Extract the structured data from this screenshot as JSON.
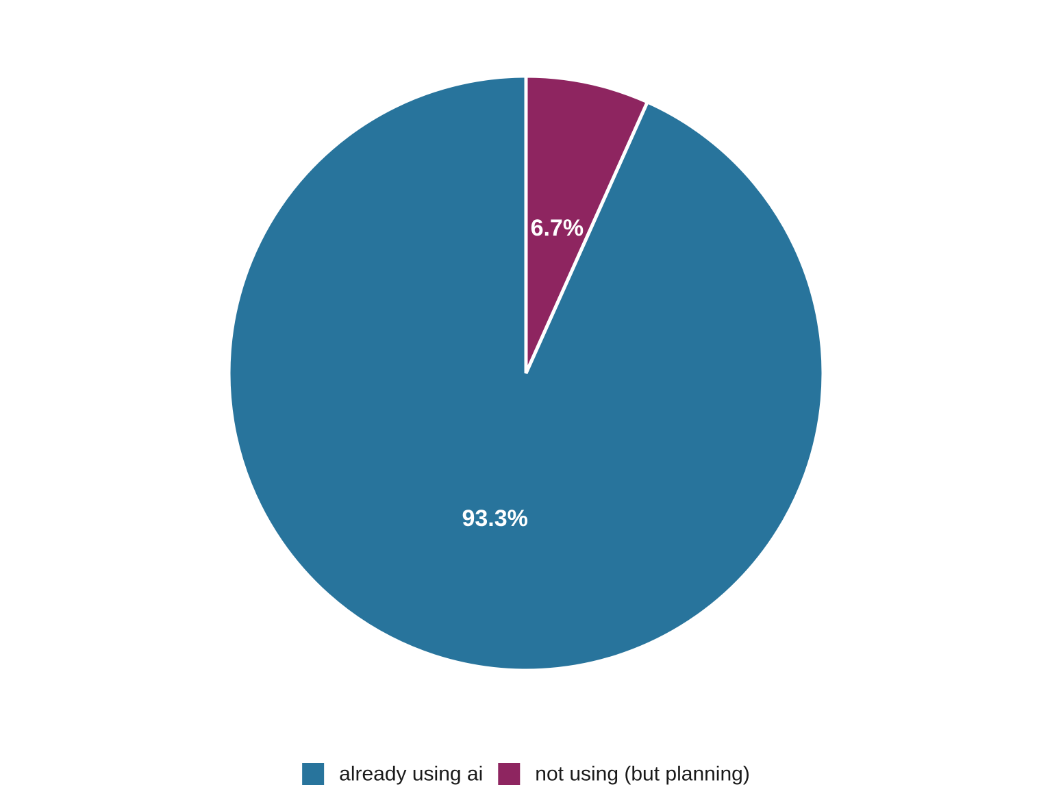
{
  "chart_data": {
    "type": "pie",
    "title": "",
    "start_angle": "12 o'clock",
    "direction": "clockwise",
    "slices": [
      {
        "name": "not using (but planning)",
        "value": 6.7,
        "label": "6.7%",
        "color": "#8e2560"
      },
      {
        "name": "already using ai",
        "value": 93.3,
        "label": "93.3%",
        "color": "#28749c"
      }
    ],
    "legend": {
      "position": "bottom",
      "entries": [
        {
          "label": "already using ai",
          "color": "#28749c"
        },
        {
          "label": "not using (but planning)",
          "color": "#8e2560"
        }
      ]
    }
  }
}
